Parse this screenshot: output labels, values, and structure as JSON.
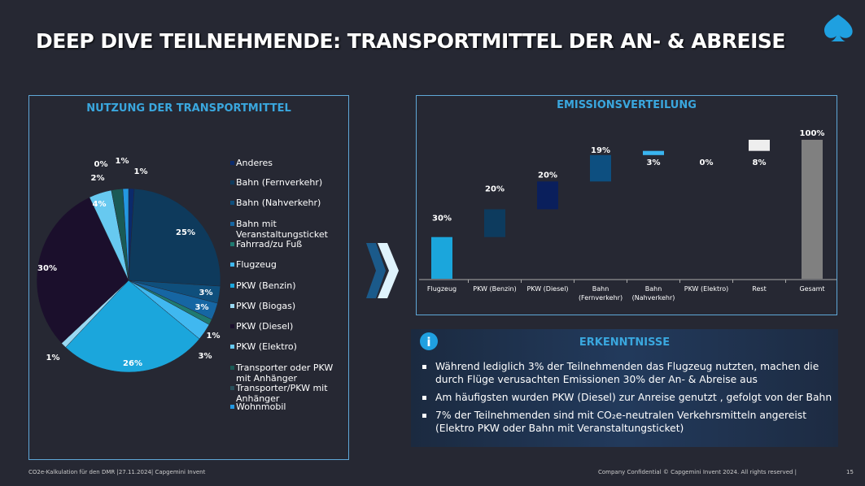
{
  "title": "DEEP DIVE TEILNEHMENDE: TRANSPORTMITTEL DER AN- & ABREISE",
  "chart_data": [
    {
      "type": "pie",
      "title": "NUTZUNG DER TRANSPORTMITTEL",
      "legend": "right",
      "slices": [
        {
          "name": "Anderes",
          "value": 1,
          "label": "1%",
          "color": "#0b2a6b"
        },
        {
          "name": "Bahn (Fernverkehr)",
          "value": 25,
          "label": "25%",
          "color": "#0e3a5c"
        },
        {
          "name": "Bahn (Nahverkehr)",
          "value": 3,
          "label": "3%",
          "color": "#0f4f7c"
        },
        {
          "name": "Bahn mit Veranstaltungsticket",
          "value": 3,
          "label": "3%",
          "color": "#1666a3"
        },
        {
          "name": "Fahrrad/zu Fuß",
          "value": 1,
          "label": "1%",
          "color": "#1f7a70"
        },
        {
          "name": "Flugzeug",
          "value": 3,
          "label": "3%",
          "color": "#40b8f0"
        },
        {
          "name": "PKW (Benzin)",
          "value": 26,
          "label": "26%",
          "color": "#1ba6dc"
        },
        {
          "name": "PKW (Biogas)",
          "value": 1,
          "label": "1%",
          "color": "#9ad8f2"
        },
        {
          "name": "PKW (Diesel)",
          "value": 30,
          "label": "30%",
          "color": "#1b0f2c"
        },
        {
          "name": "PKW (Elektro)",
          "value": 4,
          "label": "4%",
          "color": "#67c9f0"
        },
        {
          "name": "Transporter oder PKW mit Anhänger",
          "value": 2,
          "label": "2%",
          "color": "#1a5a55"
        },
        {
          "name": "Transporter/PKW mit Anhänger",
          "value": 0,
          "label": "0%",
          "color": "#2a4f5a"
        },
        {
          "name": "Wohnmobil",
          "value": 1,
          "label": "1%",
          "color": "#2398e2"
        }
      ]
    },
    {
      "type": "bar",
      "subtype": "waterfall",
      "title": "EMISSIONSVERTEILUNG",
      "ylim": [
        0,
        100
      ],
      "categories": [
        "Flugzeug",
        "PKW (Benzin)",
        "PKW (Diesel)",
        "Bahn (Fernverkehr)",
        "Bahn (Nahverkehr)",
        "PKW (Elektro)",
        "Rest",
        "Gesamt"
      ],
      "values": [
        30,
        20,
        20,
        19,
        3,
        0,
        8,
        100
      ],
      "labels": [
        "30%",
        "20%",
        "20%",
        "19%",
        "3%",
        "0%",
        "8%",
        "100%"
      ],
      "colors": [
        "#1ba6dc",
        "#0d3b5e",
        "#0a1f5c",
        "#0d4f80",
        "#3ab4ef",
        "#3ab4ef",
        "#eeeeee",
        "#808080"
      ]
    }
  ],
  "insights": {
    "title": "ERKENNTNISSE",
    "icon": "info-icon",
    "bullets": [
      "Während lediglich 3% der Teilnehmenden das Flugzeug nutzten, machen die durch Flüge verusachten Emissionen 30% der An- & Abreise aus",
      "Am häufigsten wurden PKW (Diesel) zur Anreise genutzt , gefolgt von der Bahn",
      "7% der Teilnehmenden sind mit CO₂e-neutralen Verkehrsmitteln angereist (Elektro PKW oder Bahn mit Veranstaltungsticket)"
    ]
  },
  "footer": {
    "left": "CO2e-Kalkulation für den DMR |27.11.2024| Capgemini Invent",
    "right": "Company Confidential © Capgemini Invent 2024. All rights reserved |",
    "page": "15"
  }
}
